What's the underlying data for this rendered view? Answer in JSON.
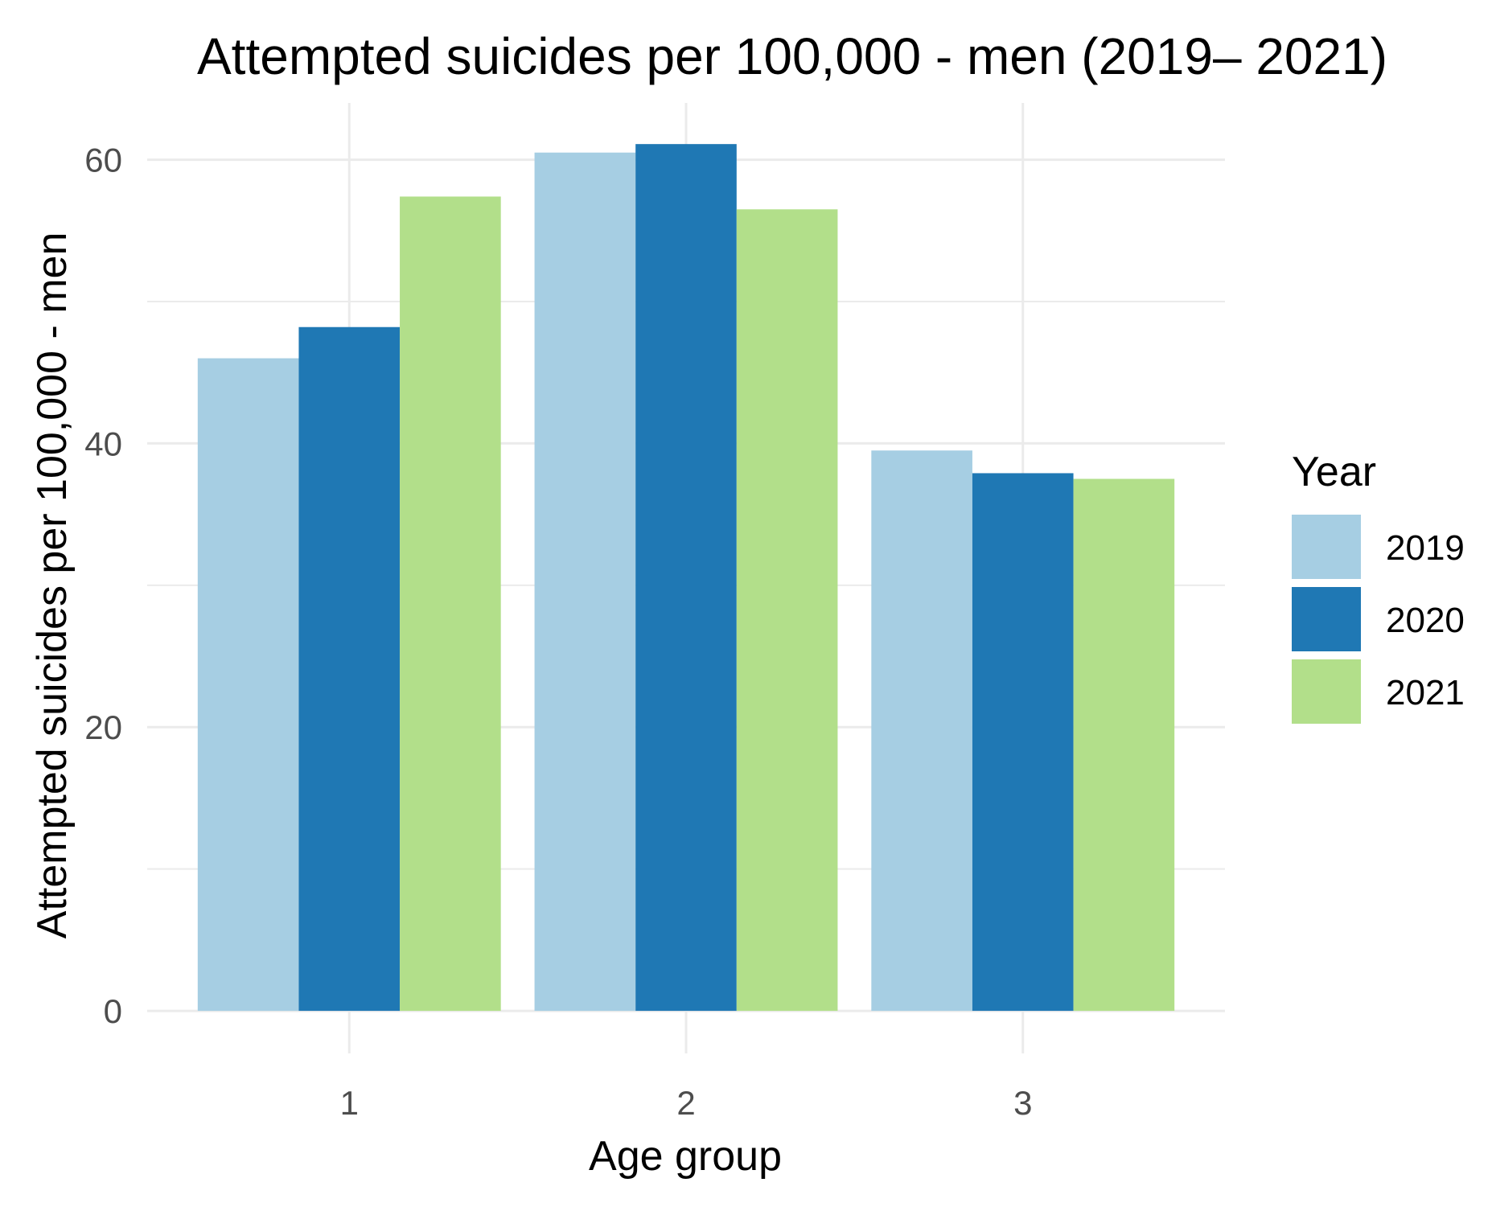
{
  "chart_data": {
    "type": "bar",
    "title": "Attempted suicides per 100,000 - men (2019– 2021)",
    "xlabel": "Age group",
    "ylabel": "Attempted suicides per 100,000 - men",
    "categories": [
      "1",
      "2",
      "3"
    ],
    "yticks": [
      "0",
      "20",
      "40",
      "60"
    ],
    "ylim": [
      -3,
      64
    ],
    "series": [
      {
        "name": "2019",
        "color": "#a6cee3",
        "values": [
          46.0,
          60.5,
          39.5
        ]
      },
      {
        "name": "2020",
        "color": "#1f78b4",
        "values": [
          48.2,
          61.1,
          37.9
        ]
      },
      {
        "name": "2021",
        "color": "#b2df8a",
        "values": [
          57.4,
          56.5,
          37.5
        ]
      }
    ],
    "legend": {
      "title": "Year",
      "position": "right"
    },
    "grid": true
  }
}
